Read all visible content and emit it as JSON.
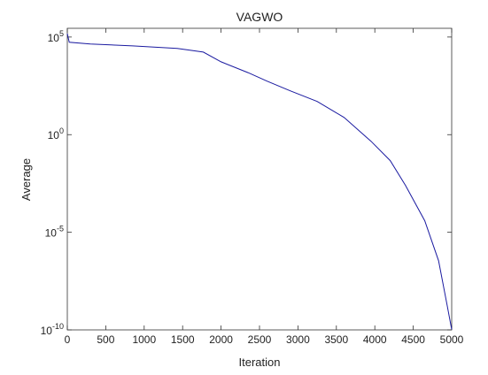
{
  "chart_data": {
    "type": "line",
    "title": "VAGWO",
    "x_label": "Iteration",
    "y_label": "Average",
    "x": [
      0,
      25,
      300,
      850,
      1430,
      1770,
      2000,
      2350,
      2600,
      2900,
      3250,
      3600,
      3950,
      4200,
      4400,
      4650,
      4830,
      4940,
      5000
    ],
    "series": [
      {
        "name": "VAGWO",
        "color": "#1a1aa0",
        "values": [
          150000,
          54000,
          44000,
          35000,
          26000,
          17000,
          5400,
          1500,
          550,
          175,
          50,
          7.6,
          0.46,
          0.047,
          0.0025,
          3.9e-05,
          3.5e-07,
          1.9e-09,
          1.05e-10
        ]
      }
    ],
    "xlim": [
      0,
      5000
    ],
    "xticks": [
      0,
      500,
      1000,
      1500,
      2000,
      2500,
      3000,
      3500,
      4000,
      4500,
      5000
    ],
    "ylim": [
      1e-10,
      280000
    ],
    "y_scale": "log",
    "yticks": [
      {
        "value": 1e-10,
        "label": "10^-10"
      },
      {
        "value": 1e-05,
        "label": "10^-5"
      },
      {
        "value": 1,
        "label": "10^0"
      },
      {
        "value": 100000,
        "label": "10^5"
      }
    ],
    "grid": false
  }
}
